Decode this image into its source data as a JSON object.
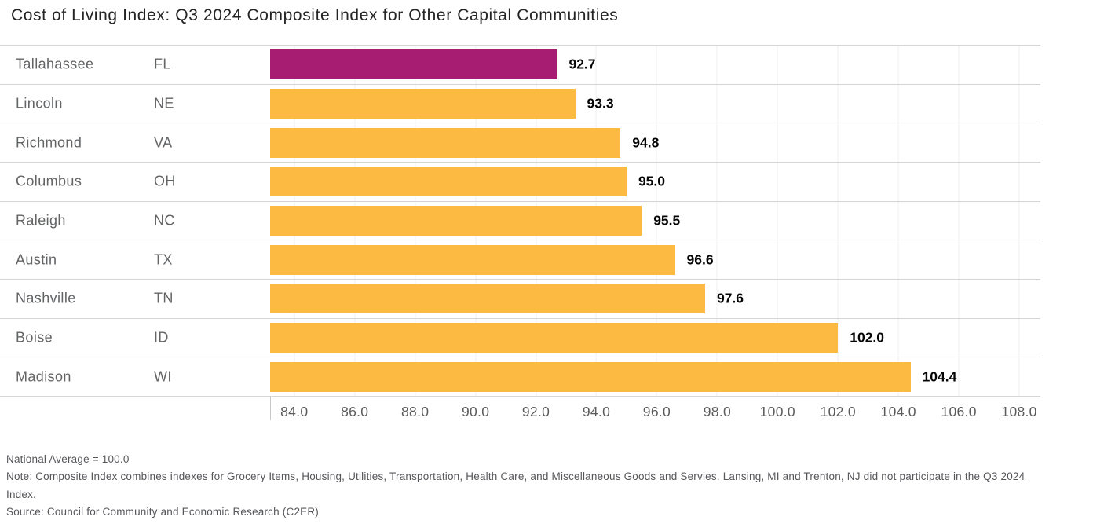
{
  "title": "Cost of Living Index: Q3 2024 Composite Index for Other Capital Communities",
  "chart_data": {
    "type": "bar",
    "orientation": "horizontal",
    "title": "Cost of Living Index: Q3 2024 Composite Index for Other Capital Communities",
    "national_average": 100.0,
    "x_axis": {
      "min": 83.2,
      "max": 108.7,
      "tick_step": 2.0,
      "ticks": [
        "84.0",
        "86.0",
        "88.0",
        "90.0",
        "92.0",
        "94.0",
        "96.0",
        "98.0",
        "100.0",
        "102.0",
        "104.0",
        "106.0",
        "108.0"
      ]
    },
    "grid": true,
    "legend": "none",
    "colors": {
      "highlight_bar": "#A61D72",
      "default_bar": "#FCBA43"
    },
    "rows": [
      {
        "city": "Tallahassee",
        "state": "FL",
        "value": 92.7,
        "label": "92.7",
        "highlight": true
      },
      {
        "city": "Lincoln",
        "state": "NE",
        "value": 93.3,
        "label": "93.3",
        "highlight": false
      },
      {
        "city": "Richmond",
        "state": "VA",
        "value": 94.8,
        "label": "94.8",
        "highlight": false
      },
      {
        "city": "Columbus",
        "state": "OH",
        "value": 95.0,
        "label": "95.0",
        "highlight": false
      },
      {
        "city": "Raleigh",
        "state": "NC",
        "value": 95.5,
        "label": "95.5",
        "highlight": false
      },
      {
        "city": "Austin",
        "state": "TX",
        "value": 96.6,
        "label": "96.6",
        "highlight": false
      },
      {
        "city": "Nashville",
        "state": "TN",
        "value": 97.6,
        "label": "97.6",
        "highlight": false
      },
      {
        "city": "Boise",
        "state": "ID",
        "value": 102.0,
        "label": "102.0",
        "highlight": false
      },
      {
        "city": "Madison",
        "state": "WI",
        "value": 104.4,
        "label": "104.4",
        "highlight": false
      }
    ]
  },
  "footer": {
    "national_average": "National Average = 100.0",
    "note": "Note: Composite Index combines indexes for Grocery Items, Housing, Utilities, Transportation, Health Care, and Miscellaneous Goods and Servies. Lansing, MI and Trenton, NJ did not participate in the Q3 2024 Index.",
    "source": "Source: Council for Community and Economic Research (C2ER)"
  }
}
